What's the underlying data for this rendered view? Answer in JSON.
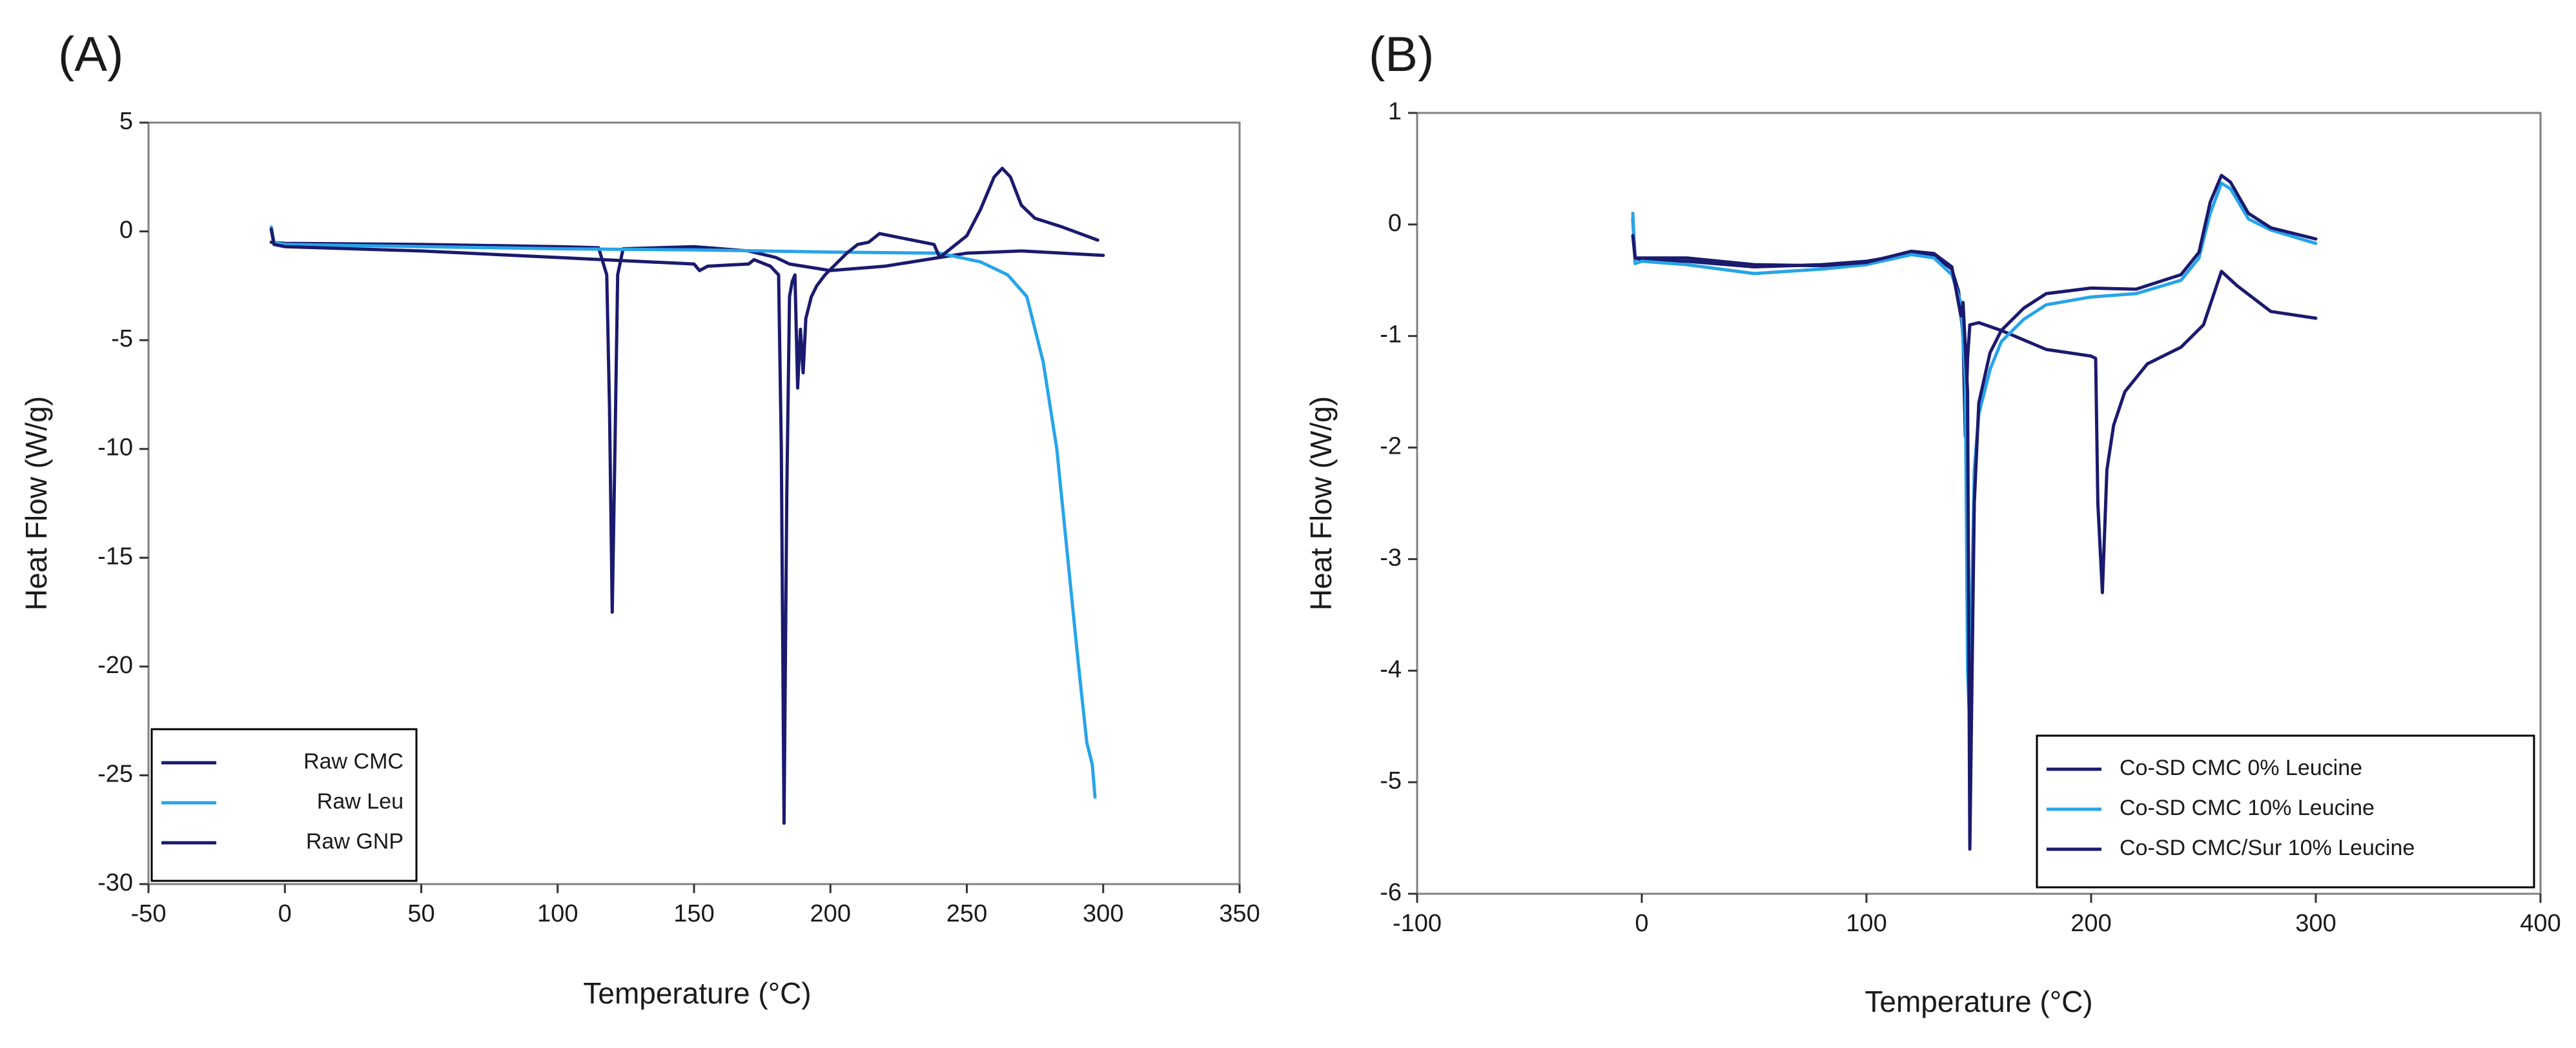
{
  "chart_data": [
    {
      "type": "line",
      "panel_label": "(A)",
      "title": "",
      "xlabel": "Temperature (°C)",
      "ylabel": "Heat Flow (W/g)",
      "xlim": [
        -50,
        350
      ],
      "ylim": [
        -30,
        5
      ],
      "xticks": [
        -50,
        0,
        50,
        100,
        150,
        200,
        250,
        300,
        350
      ],
      "yticks": [
        5,
        0,
        -5,
        -10,
        -15,
        -20,
        -25,
        -30
      ],
      "grid": false,
      "legend_position": "bottom-left",
      "series": [
        {
          "name": "Raw CMC",
          "color": "#1a1a6e",
          "points": [
            [
              -5,
              -0.5
            ],
            [
              0,
              -0.55
            ],
            [
              50,
              -0.6
            ],
            [
              100,
              -0.7
            ],
            [
              115,
              -0.75
            ],
            [
              118,
              -2
            ],
            [
              119,
              -8
            ],
            [
              120,
              -17.5
            ],
            [
              121,
              -10
            ],
            [
              122,
              -2
            ],
            [
              124,
              -0.8
            ],
            [
              150,
              -0.7
            ],
            [
              170,
              -0.9
            ],
            [
              180,
              -1.2
            ],
            [
              185,
              -1.5
            ],
            [
              190,
              -1.6
            ],
            [
              200,
              -1.8
            ],
            [
              220,
              -1.6
            ],
            [
              240,
              -1.2
            ],
            [
              250,
              -1.0
            ],
            [
              270,
              -0.9
            ],
            [
              300,
              -1.1
            ]
          ]
        },
        {
          "name": "Raw Leu",
          "color": "#27a4e8",
          "points": [
            [
              -5,
              0.2
            ],
            [
              -4,
              -0.5
            ],
            [
              0,
              -0.6
            ],
            [
              50,
              -0.7
            ],
            [
              100,
              -0.8
            ],
            [
              150,
              -0.85
            ],
            [
              200,
              -0.95
            ],
            [
              240,
              -1.0
            ],
            [
              255,
              -1.4
            ],
            [
              265,
              -2.0
            ],
            [
              272,
              -3.0
            ],
            [
              278,
              -6
            ],
            [
              283,
              -10
            ],
            [
              287,
              -15
            ],
            [
              291,
              -20
            ],
            [
              294,
              -23.5
            ],
            [
              296,
              -24.5
            ],
            [
              297,
              -26
            ]
          ]
        },
        {
          "name": "Raw GNP",
          "color": "#1a1a6e",
          "points": [
            [
              -5,
              0.1
            ],
            [
              -4,
              -0.6
            ],
            [
              0,
              -0.7
            ],
            [
              50,
              -0.9
            ],
            [
              100,
              -1.2
            ],
            [
              150,
              -1.5
            ],
            [
              152,
              -1.8
            ],
            [
              155,
              -1.6
            ],
            [
              170,
              -1.5
            ],
            [
              172,
              -1.3
            ],
            [
              178,
              -1.6
            ],
            [
              181,
              -2.0
            ],
            [
              182,
              -10
            ],
            [
              183,
              -27.2
            ],
            [
              184,
              -12
            ],
            [
              185,
              -3
            ],
            [
              186,
              -2.3
            ],
            [
              187,
              -2.0
            ],
            [
              188,
              -7.2
            ],
            [
              189,
              -4.5
            ],
            [
              190,
              -6.5
            ],
            [
              191,
              -4
            ],
            [
              193,
              -3
            ],
            [
              195,
              -2.5
            ],
            [
              198,
              -2
            ],
            [
              202,
              -1.5
            ],
            [
              206,
              -1.0
            ],
            [
              210,
              -0.6
            ],
            [
              214,
              -0.5
            ],
            [
              218,
              -0.1
            ],
            [
              222,
              -0.2
            ],
            [
              230,
              -0.4
            ],
            [
              238,
              -0.6
            ],
            [
              240,
              -1.2
            ],
            [
              244,
              -0.8
            ],
            [
              250,
              -0.2
            ],
            [
              255,
              1.0
            ],
            [
              260,
              2.5
            ],
            [
              263,
              2.9
            ],
            [
              266,
              2.5
            ],
            [
              270,
              1.2
            ],
            [
              275,
              0.6
            ],
            [
              285,
              0.2
            ],
            [
              298,
              -0.4
            ]
          ]
        }
      ]
    },
    {
      "type": "line",
      "panel_label": "(B)",
      "title": "",
      "xlabel": "Temperature (°C)",
      "ylabel": "Heat Flow (W/g)",
      "xlim": [
        -100,
        400
      ],
      "ylim": [
        -6,
        1
      ],
      "xticks": [
        -100,
        0,
        100,
        200,
        300,
        400
      ],
      "yticks": [
        1,
        0,
        -1,
        -2,
        -3,
        -4,
        -5,
        -6
      ],
      "grid": false,
      "legend_position": "bottom-right",
      "series": [
        {
          "name": "Co-SD CMC 0% Leucine",
          "color": "#1a1a6e",
          "points": [
            [
              -4,
              0.05
            ],
            [
              -3,
              -0.3
            ],
            [
              0,
              -0.32
            ],
            [
              20,
              -0.33
            ],
            [
              50,
              -0.38
            ],
            [
              80,
              -0.36
            ],
            [
              100,
              -0.33
            ],
            [
              120,
              -0.26
            ],
            [
              130,
              -0.28
            ],
            [
              138,
              -0.4
            ],
            [
              141,
              -0.6
            ],
            [
              143,
              -1.0
            ],
            [
              144,
              -1.9
            ],
            [
              145,
              -1.2
            ],
            [
              146,
              -0.9
            ],
            [
              150,
              -0.88
            ],
            [
              160,
              -0.95
            ],
            [
              180,
              -1.12
            ],
            [
              200,
              -1.18
            ],
            [
              202,
              -1.2
            ],
            [
              203,
              -2.5
            ],
            [
              205,
              -3.3
            ],
            [
              207,
              -2.2
            ],
            [
              210,
              -1.8
            ],
            [
              215,
              -1.5
            ],
            [
              225,
              -1.25
            ],
            [
              240,
              -1.1
            ],
            [
              250,
              -0.9
            ],
            [
              258,
              -0.42
            ],
            [
              265,
              -0.55
            ],
            [
              280,
              -0.78
            ],
            [
              300,
              -0.84
            ]
          ]
        },
        {
          "name": "Co-SD CMC 10% Leucine",
          "color": "#27a4e8",
          "points": [
            [
              -4,
              0.1
            ],
            [
              -3,
              -0.35
            ],
            [
              0,
              -0.33
            ],
            [
              20,
              -0.36
            ],
            [
              50,
              -0.44
            ],
            [
              80,
              -0.4
            ],
            [
              100,
              -0.36
            ],
            [
              120,
              -0.27
            ],
            [
              130,
              -0.3
            ],
            [
              138,
              -0.45
            ],
            [
              142,
              -0.7
            ],
            [
              144,
              -1.4
            ],
            [
              145,
              -4.0
            ],
            [
              146,
              -4.5
            ],
            [
              147,
              -3.2
            ],
            [
              148,
              -2.2
            ],
            [
              150,
              -1.7
            ],
            [
              155,
              -1.3
            ],
            [
              160,
              -1.05
            ],
            [
              170,
              -0.85
            ],
            [
              180,
              -0.72
            ],
            [
              200,
              -0.65
            ],
            [
              220,
              -0.62
            ],
            [
              240,
              -0.5
            ],
            [
              248,
              -0.3
            ],
            [
              253,
              0.1
            ],
            [
              258,
              0.37
            ],
            [
              262,
              0.32
            ],
            [
              270,
              0.05
            ],
            [
              280,
              -0.05
            ],
            [
              300,
              -0.17
            ]
          ]
        },
        {
          "name": "Co-SD CMC/Sur 10% Leucine",
          "color": "#1a1a6e",
          "points": [
            [
              -4,
              -0.1
            ],
            [
              -3,
              -0.3
            ],
            [
              0,
              -0.3
            ],
            [
              20,
              -0.3
            ],
            [
              50,
              -0.36
            ],
            [
              80,
              -0.37
            ],
            [
              100,
              -0.34
            ],
            [
              120,
              -0.24
            ],
            [
              130,
              -0.26
            ],
            [
              138,
              -0.38
            ],
            [
              140,
              -0.6
            ],
            [
              142,
              -0.82
            ],
            [
              143,
              -0.7
            ],
            [
              145,
              -1.5
            ],
            [
              146,
              -5.6
            ],
            [
              147,
              -4.0
            ],
            [
              148,
              -2.5
            ],
            [
              150,
              -1.6
            ],
            [
              155,
              -1.15
            ],
            [
              160,
              -0.95
            ],
            [
              170,
              -0.75
            ],
            [
              180,
              -0.62
            ],
            [
              200,
              -0.57
            ],
            [
              220,
              -0.58
            ],
            [
              240,
              -0.45
            ],
            [
              248,
              -0.25
            ],
            [
              253,
              0.2
            ],
            [
              258,
              0.44
            ],
            [
              262,
              0.38
            ],
            [
              270,
              0.1
            ],
            [
              280,
              -0.03
            ],
            [
              300,
              -0.13
            ]
          ]
        }
      ]
    }
  ]
}
